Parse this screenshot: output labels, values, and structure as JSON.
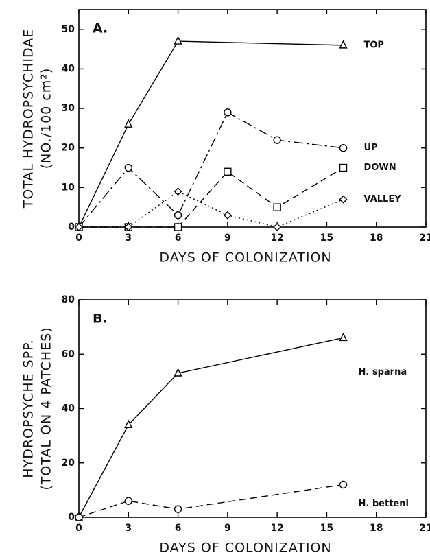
{
  "chart_data": [
    {
      "type": "line",
      "annotation": "A.",
      "ylabel": "TOTAL HYDROPSYCHIDAE",
      "ylabel2": "(NO./100 cm²)",
      "xlabel": "DAYS OF COLONIZATION",
      "xlim": [
        0,
        21
      ],
      "xticks": [
        0,
        3,
        6,
        9,
        12,
        15,
        18,
        21
      ],
      "ylim": [
        0,
        55
      ],
      "yticks": [
        0,
        10,
        20,
        30,
        40,
        50
      ],
      "series": [
        {
          "name": "TOP",
          "color": "#000000",
          "marker": "triangle",
          "dash": "solid",
          "x": [
            0,
            3,
            6,
            16
          ],
          "values": [
            0,
            26,
            47,
            46
          ]
        },
        {
          "name": "UP",
          "color": "#000000",
          "marker": "circle",
          "dash": "dashdot",
          "x": [
            0,
            3,
            6,
            9,
            12,
            16
          ],
          "values": [
            0,
            15,
            3,
            29,
            22,
            20
          ]
        },
        {
          "name": "DOWN",
          "color": "#000000",
          "marker": "square",
          "dash": "dashed",
          "x": [
            0,
            3,
            6,
            9,
            12,
            16
          ],
          "values": [
            0,
            0,
            0,
            14,
            5,
            15
          ]
        },
        {
          "name": "VALLEY",
          "color": "#000000",
          "marker": "diamond",
          "dash": "dotted",
          "x": [
            0,
            3,
            6,
            9,
            12,
            16
          ],
          "values": [
            0,
            0,
            9,
            3,
            0,
            7
          ]
        }
      ]
    },
    {
      "type": "line",
      "annotation": "B.",
      "ylabel": "HYDROPSYCHE SPP.",
      "ylabel2": "(TOTAL ON 4 PATCHES)",
      "xlabel": "DAYS OF COLONIZATION",
      "xlim": [
        0,
        21
      ],
      "xticks": [
        0,
        3,
        6,
        9,
        12,
        15,
        18,
        21
      ],
      "ylim": [
        0,
        80
      ],
      "yticks": [
        0,
        20,
        40,
        60,
        80
      ],
      "series": [
        {
          "name": "H. sparna",
          "color": "#000000",
          "marker": "triangle",
          "dash": "solid",
          "x": [
            0,
            3,
            6,
            16
          ],
          "values": [
            0,
            34,
            53,
            66
          ]
        },
        {
          "name": "H. betteni",
          "color": "#000000",
          "marker": "circle",
          "dash": "dashed",
          "x": [
            0,
            3,
            6,
            16
          ],
          "values": [
            0,
            6,
            3,
            12
          ]
        }
      ]
    }
  ]
}
